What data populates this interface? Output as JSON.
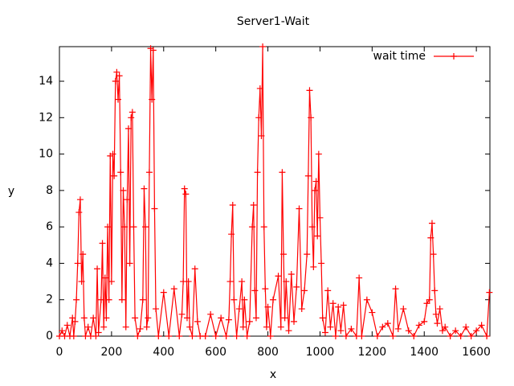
{
  "chart_data": {
    "type": "line",
    "title": "Server1-Wait",
    "x_label": "x",
    "y_label": "y",
    "x": [
      0,
      10,
      20,
      30,
      40,
      50,
      55,
      60,
      65,
      70,
      75,
      80,
      85,
      90,
      95,
      100,
      110,
      120,
      130,
      140,
      145,
      150,
      160,
      165,
      170,
      175,
      180,
      185,
      190,
      195,
      200,
      205,
      210,
      215,
      220,
      225,
      230,
      235,
      240,
      245,
      250,
      255,
      260,
      265,
      270,
      275,
      280,
      285,
      290,
      300,
      310,
      320,
      325,
      330,
      335,
      340,
      345,
      350,
      355,
      360,
      365,
      370,
      380,
      400,
      420,
      440,
      460,
      470,
      475,
      480,
      485,
      490,
      495,
      500,
      510,
      520,
      530,
      540,
      560,
      580,
      600,
      620,
      640,
      650,
      655,
      660,
      665,
      670,
      680,
      690,
      700,
      705,
      710,
      720,
      730,
      740,
      745,
      750,
      755,
      760,
      765,
      770,
      775,
      780,
      785,
      790,
      795,
      800,
      810,
      820,
      840,
      850,
      855,
      860,
      865,
      870,
      880,
      890,
      900,
      910,
      920,
      930,
      940,
      950,
      955,
      960,
      965,
      970,
      975,
      980,
      985,
      990,
      995,
      1000,
      1005,
      1010,
      1020,
      1030,
      1040,
      1050,
      1060,
      1070,
      1080,
      1090,
      1100,
      1120,
      1140,
      1150,
      1160,
      1180,
      1200,
      1220,
      1240,
      1260,
      1280,
      1290,
      1300,
      1320,
      1340,
      1360,
      1380,
      1400,
      1410,
      1420,
      1425,
      1430,
      1435,
      1440,
      1445,
      1450,
      1460,
      1470,
      1480,
      1500,
      1520,
      1540,
      1560,
      1580,
      1600,
      1620,
      1640,
      1650
    ],
    "series": [
      {
        "name": "wait time",
        "color": "#ff0000",
        "values": [
          0,
          0.3,
          0,
          0.6,
          0,
          1,
          0,
          0.8,
          2,
          4,
          6.8,
          7.5,
          3,
          4.5,
          1,
          0,
          0.5,
          0,
          1,
          0,
          3.7,
          0.2,
          2,
          5.1,
          0.5,
          3.2,
          1,
          6,
          2,
          9.9,
          3,
          10,
          8.8,
          14,
          14.5,
          13,
          14.3,
          9,
          2,
          8,
          6,
          0.5,
          7.5,
          11.4,
          4,
          12,
          12.3,
          6,
          1,
          0,
          0.4,
          2,
          8.1,
          6,
          0.5,
          1,
          9,
          15.8,
          13,
          15.7,
          7,
          1.5,
          0,
          2.4,
          0,
          2.6,
          0,
          1.2,
          3,
          8.1,
          7.8,
          1,
          3,
          0.5,
          0,
          3.7,
          0.8,
          0,
          0,
          1.2,
          0,
          1,
          0,
          0.9,
          3,
          5.6,
          7.2,
          2,
          0,
          1.5,
          3,
          0.5,
          2,
          0,
          0.8,
          6,
          7.2,
          2.5,
          1,
          9,
          12,
          13.6,
          11,
          15.9,
          6,
          2.6,
          0.5,
          1.6,
          0,
          2,
          3.3,
          0.5,
          9,
          4.5,
          1,
          3,
          0.3,
          3.4,
          0.8,
          2.7,
          7,
          1.5,
          2.5,
          4.5,
          8.8,
          13.5,
          12,
          6,
          3.8,
          8,
          8.5,
          5.5,
          10,
          6.5,
          4,
          1,
          0.2,
          2.5,
          0.5,
          1.8,
          0,
          1.6,
          0.3,
          1.7,
          0,
          0.4,
          0,
          3.2,
          0,
          2,
          1.3,
          0,
          0.5,
          0.7,
          0,
          2.6,
          0.4,
          1.5,
          0.3,
          0,
          0.6,
          0.8,
          1.8,
          2,
          5.4,
          6.2,
          4.5,
          2.5,
          1.2,
          0.7,
          1.5,
          0.3,
          0.5,
          0,
          0.3,
          0,
          0.5,
          0,
          0.3,
          0.6,
          0,
          2.4
        ]
      }
    ],
    "xlim": [
      0,
      1652
    ],
    "xticks": [
      0,
      200,
      400,
      600,
      800,
      1000,
      1200,
      1400,
      1600
    ],
    "ylim": [
      0,
      15.9
    ],
    "yticks": [
      0,
      2,
      4,
      6,
      8,
      10,
      12,
      14
    ],
    "legend": "top-right"
  }
}
